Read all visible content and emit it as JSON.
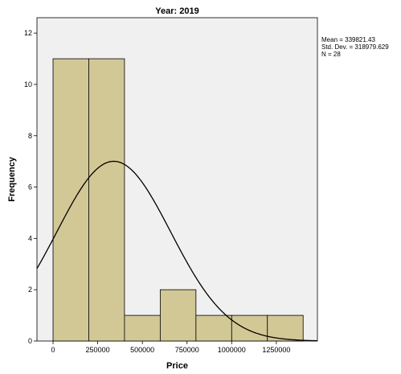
{
  "chart_data": {
    "type": "bar",
    "title": "Year: 2019",
    "xlabel": "Price",
    "ylabel": "Frequency",
    "bins": [
      {
        "start": 0,
        "end": 200000,
        "count": 11
      },
      {
        "start": 200000,
        "end": 400000,
        "count": 11
      },
      {
        "start": 400000,
        "end": 600000,
        "count": 1
      },
      {
        "start": 600000,
        "end": 800000,
        "count": 2
      },
      {
        "start": 800000,
        "end": 1000000,
        "count": 1
      },
      {
        "start": 1000000,
        "end": 1200000,
        "count": 1
      },
      {
        "start": 1200000,
        "end": 1400000,
        "count": 1
      }
    ],
    "x_ticks": [
      0,
      250000,
      500000,
      750000,
      1000000,
      1250000
    ],
    "x_tick_labels": [
      "0",
      "250000",
      "500000",
      "750000",
      "1000000",
      "1250000"
    ],
    "y_ticks": [
      0,
      2,
      4,
      6,
      8,
      10,
      12
    ],
    "y_tick_labels": [
      "0",
      "2",
      "4",
      "6",
      "8",
      "10",
      "12"
    ],
    "xlim": [
      -90000,
      1480000
    ],
    "ylim": [
      0,
      12.6
    ],
    "normal_curve": {
      "mean": 339821.43,
      "sd": 318979.629,
      "n": 28,
      "bin_width": 200000
    },
    "stats": [
      "Mean = 339821.43",
      "Std. Dev. = 318979.629",
      "N = 28"
    ],
    "grid": false,
    "colors": {
      "bar_fill": "#d2c896",
      "bar_stroke": "#000000",
      "plot_bg": "#f0f0f0",
      "curve": "#000000"
    }
  }
}
